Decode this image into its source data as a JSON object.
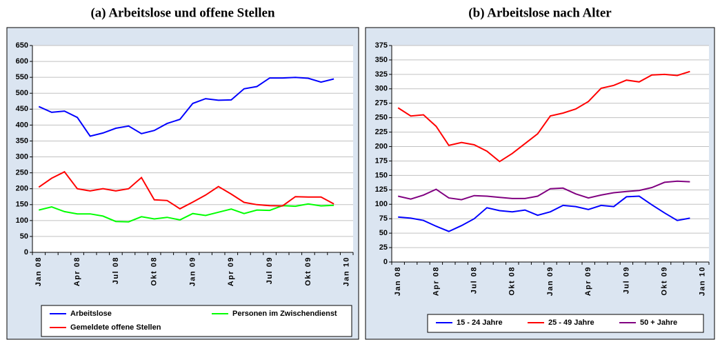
{
  "chart_data": [
    {
      "type": "line",
      "title": "(a) Arbeitslose und offene Stellen",
      "categories": [
        "Jan 08",
        null,
        null,
        "Apr 08",
        null,
        null,
        "Jul 08",
        null,
        null,
        "Okt 08",
        null,
        null,
        "Jan 09",
        null,
        null,
        "Apr 09",
        null,
        null,
        "Jul 09",
        null,
        null,
        "Okt 09",
        null,
        null,
        "Jan 10"
      ],
      "series": [
        {
          "name": "Arbeitslose",
          "color": "#0000ff",
          "values": [
            458,
            440,
            444,
            424,
            365,
            375,
            390,
            397,
            373,
            383,
            405,
            418,
            468,
            483,
            478,
            479,
            514,
            521,
            548,
            548,
            550,
            547,
            535,
            545,
            null
          ]
        },
        {
          "name": "Personen im Zwischendienst",
          "color": "#00ff00",
          "values": [
            133,
            143,
            128,
            121,
            121,
            114,
            97,
            96,
            112,
            105,
            110,
            102,
            122,
            116,
            126,
            136,
            122,
            133,
            132,
            147,
            145,
            152,
            146,
            148,
            null
          ]
        },
        {
          "name": "Gemeldete offene Stellen",
          "color": "#ff0000",
          "values": [
            205,
            233,
            253,
            200,
            193,
            200,
            193,
            200,
            235,
            165,
            163,
            137,
            158,
            180,
            207,
            183,
            157,
            150,
            147,
            146,
            175,
            174,
            174,
            152,
            null
          ]
        }
      ],
      "ylim": [
        0,
        650
      ],
      "yticks": [
        0,
        50,
        100,
        150,
        200,
        250,
        300,
        350,
        400,
        450,
        500,
        550,
        600,
        650
      ],
      "grid": true,
      "legend": "bottom"
    },
    {
      "type": "line",
      "title": "(b) Arbeitslose nach Alter",
      "categories": [
        "Jan 08",
        null,
        null,
        "Apr 08",
        null,
        null,
        "Jul 08",
        null,
        null,
        "Okt 08",
        null,
        null,
        "Jan 09",
        null,
        null,
        "Apr 09",
        null,
        null,
        "Jul 09",
        null,
        null,
        "Okt 09",
        null,
        null,
        "Jan 10"
      ],
      "series": [
        {
          "name": "15 - 24 Jahre",
          "color": "#0000ff",
          "values": [
            78,
            76,
            72,
            62,
            53,
            63,
            75,
            94,
            89,
            87,
            90,
            81,
            87,
            98,
            96,
            91,
            98,
            96,
            113,
            114,
            99,
            85,
            72,
            76,
            null
          ]
        },
        {
          "name": "25 - 49 Jahre",
          "color": "#ff0000",
          "values": [
            267,
            253,
            255,
            235,
            202,
            207,
            203,
            192,
            174,
            188,
            205,
            222,
            253,
            258,
            265,
            278,
            301,
            306,
            315,
            312,
            324,
            325,
            323,
            330,
            null
          ]
        },
        {
          "name": "50 + Jahre",
          "color": "#800080",
          "values": [
            114,
            109,
            116,
            126,
            111,
            108,
            115,
            114,
            112,
            110,
            110,
            114,
            127,
            128,
            118,
            111,
            116,
            120,
            122,
            124,
            129,
            138,
            140,
            139,
            null
          ]
        }
      ],
      "ylim": [
        0,
        375
      ],
      "yticks": [
        0,
        25,
        50,
        75,
        100,
        125,
        150,
        175,
        200,
        225,
        250,
        275,
        300,
        325,
        350,
        375
      ],
      "grid": true,
      "legend": "bottom"
    }
  ]
}
